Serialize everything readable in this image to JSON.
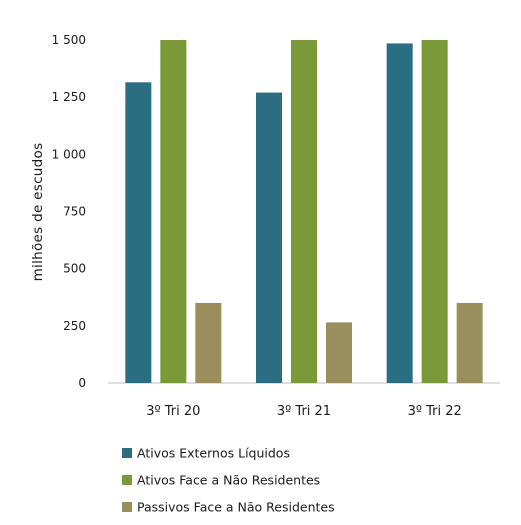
{
  "chart_data": {
    "type": "bar",
    "title": "",
    "xlabel": "",
    "ylabel": "milhões de escudos",
    "categories": [
      "3º Tri 20",
      "3º Tri 21",
      "3º Tri 22"
    ],
    "ylim": [
      0,
      1500
    ],
    "yticks": [
      0,
      250,
      500,
      750,
      1000,
      1250,
      1500
    ],
    "ytick_labels": [
      "0",
      "250",
      "500",
      "750",
      "1 000",
      "1 250",
      "1 500"
    ],
    "grid": false,
    "legend_position": "bottom-left",
    "series": [
      {
        "name": "Ativos Externos Líquidos",
        "color": "#2b6e82",
        "values": [
          1315,
          1270,
          1485
        ]
      },
      {
        "name": "Ativos Face a Não Residentes",
        "color": "#7a9a3a",
        "values": [
          1500,
          1500,
          1500
        ]
      },
      {
        "name": "Passivos Face a Não Residentes",
        "color": "#9a8e5c",
        "values": [
          350,
          265,
          350
        ]
      }
    ]
  }
}
